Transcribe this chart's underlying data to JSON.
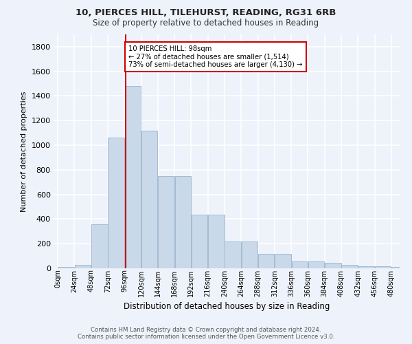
{
  "title1": "10, PIERCES HILL, TILEHURST, READING, RG31 6RB",
  "title2": "Size of property relative to detached houses in Reading",
  "xlabel": "Distribution of detached houses by size in Reading",
  "ylabel": "Number of detached properties",
  "bin_labels": [
    "0sqm",
    "24sqm",
    "48sqm",
    "72sqm",
    "96sqm",
    "120sqm",
    "144sqm",
    "168sqm",
    "192sqm",
    "216sqm",
    "240sqm",
    "264sqm",
    "288sqm",
    "312sqm",
    "336sqm",
    "360sqm",
    "384sqm",
    "408sqm",
    "432sqm",
    "456sqm",
    "480sqm"
  ],
  "bin_edges": [
    0,
    24,
    48,
    72,
    96,
    120,
    144,
    168,
    192,
    216,
    240,
    264,
    288,
    312,
    336,
    360,
    384,
    408,
    432,
    456,
    480
  ],
  "bar_heights": [
    10,
    30,
    355,
    1060,
    1480,
    1120,
    750,
    750,
    435,
    435,
    220,
    220,
    115,
    115,
    58,
    58,
    42,
    28,
    18,
    15,
    10
  ],
  "bar_color": "#c9d9ea",
  "bar_edge_color": "#9ab4cc",
  "vline_x": 98,
  "vline_color": "#cc0000",
  "annotation_text": "10 PIERCES HILL: 98sqm\n← 27% of detached houses are smaller (1,514)\n73% of semi-detached houses are larger (4,130) →",
  "annotation_box_color": "#ffffff",
  "annotation_box_edge": "#cc0000",
  "ylim": [
    0,
    1900
  ],
  "yticks": [
    0,
    200,
    400,
    600,
    800,
    1000,
    1200,
    1400,
    1600,
    1800
  ],
  "background_color": "#eef2fa",
  "grid_color": "#ffffff",
  "footer1": "Contains HM Land Registry data © Crown copyright and database right 2024.",
  "footer2": "Contains public sector information licensed under the Open Government Licence v3.0."
}
